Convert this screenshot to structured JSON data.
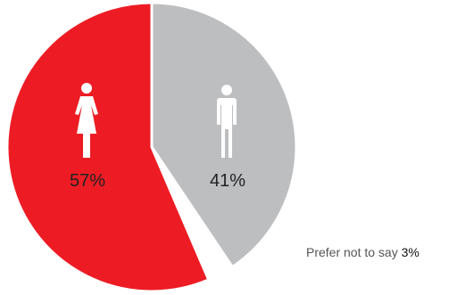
{
  "chart_data": {
    "type": "pie",
    "slices": [
      {
        "category": "female",
        "icon": "female-person-icon",
        "value": 57,
        "label": "57%",
        "color": "#ed1c24"
      },
      {
        "category": "male",
        "icon": "male-person-icon",
        "value": 41,
        "label": "41%",
        "color": "#bcbec0"
      },
      {
        "category": "prefer-not-to-say",
        "value": 3,
        "label": "3%",
        "color": "#ffffff"
      }
    ],
    "note": {
      "text": "Prefer not to say",
      "value": "3%"
    }
  }
}
